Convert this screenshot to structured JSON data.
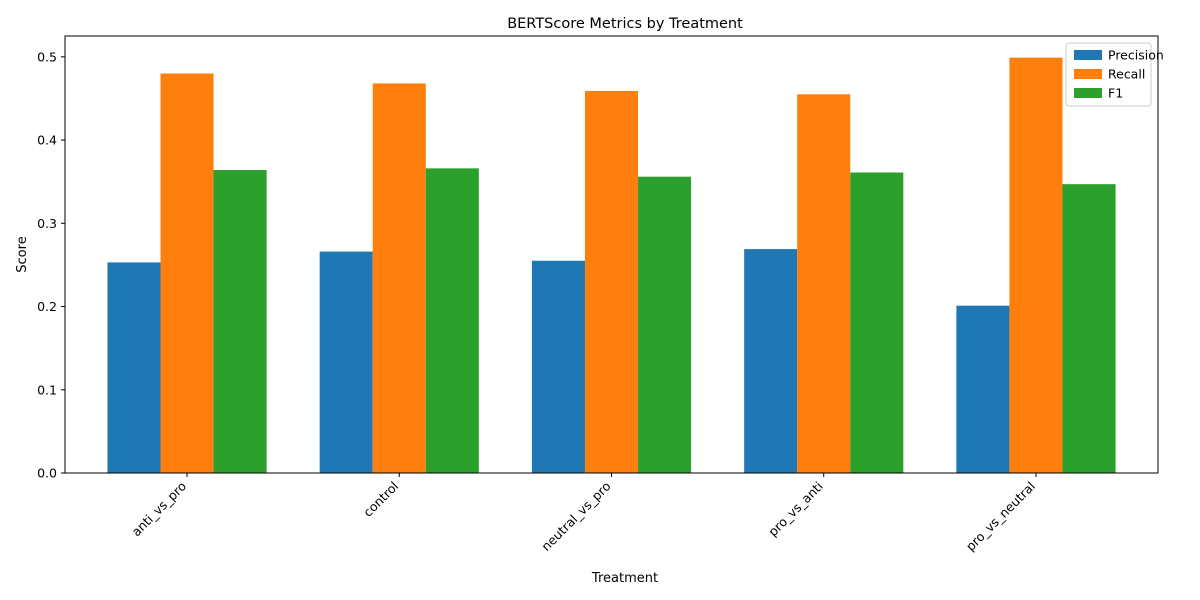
{
  "chart_data": {
    "type": "bar",
    "title": "BERTScore Metrics by Treatment",
    "xlabel": "Treatment",
    "ylabel": "Score",
    "categories": [
      "anti_vs_pro",
      "control",
      "neutral_vs_pro",
      "pro_vs_anti",
      "pro_vs_neutral"
    ],
    "series": [
      {
        "name": "Precision",
        "color": "#1f77b4",
        "values": [
          0.253,
          0.266,
          0.255,
          0.269,
          0.201
        ]
      },
      {
        "name": "Recall",
        "color": "#ff7f0e",
        "values": [
          0.48,
          0.468,
          0.459,
          0.455,
          0.499
        ]
      },
      {
        "name": "F1",
        "color": "#2ca02c",
        "values": [
          0.364,
          0.366,
          0.356,
          0.361,
          0.347
        ]
      }
    ],
    "ylim": [
      0,
      0.525
    ],
    "yticks": [
      0.0,
      0.1,
      0.2,
      0.3,
      0.4,
      0.5
    ],
    "ytick_labels": [
      "0.0",
      "0.1",
      "0.2",
      "0.3",
      "0.4",
      "0.5"
    ],
    "grid": false,
    "legend_position": "top-right"
  }
}
